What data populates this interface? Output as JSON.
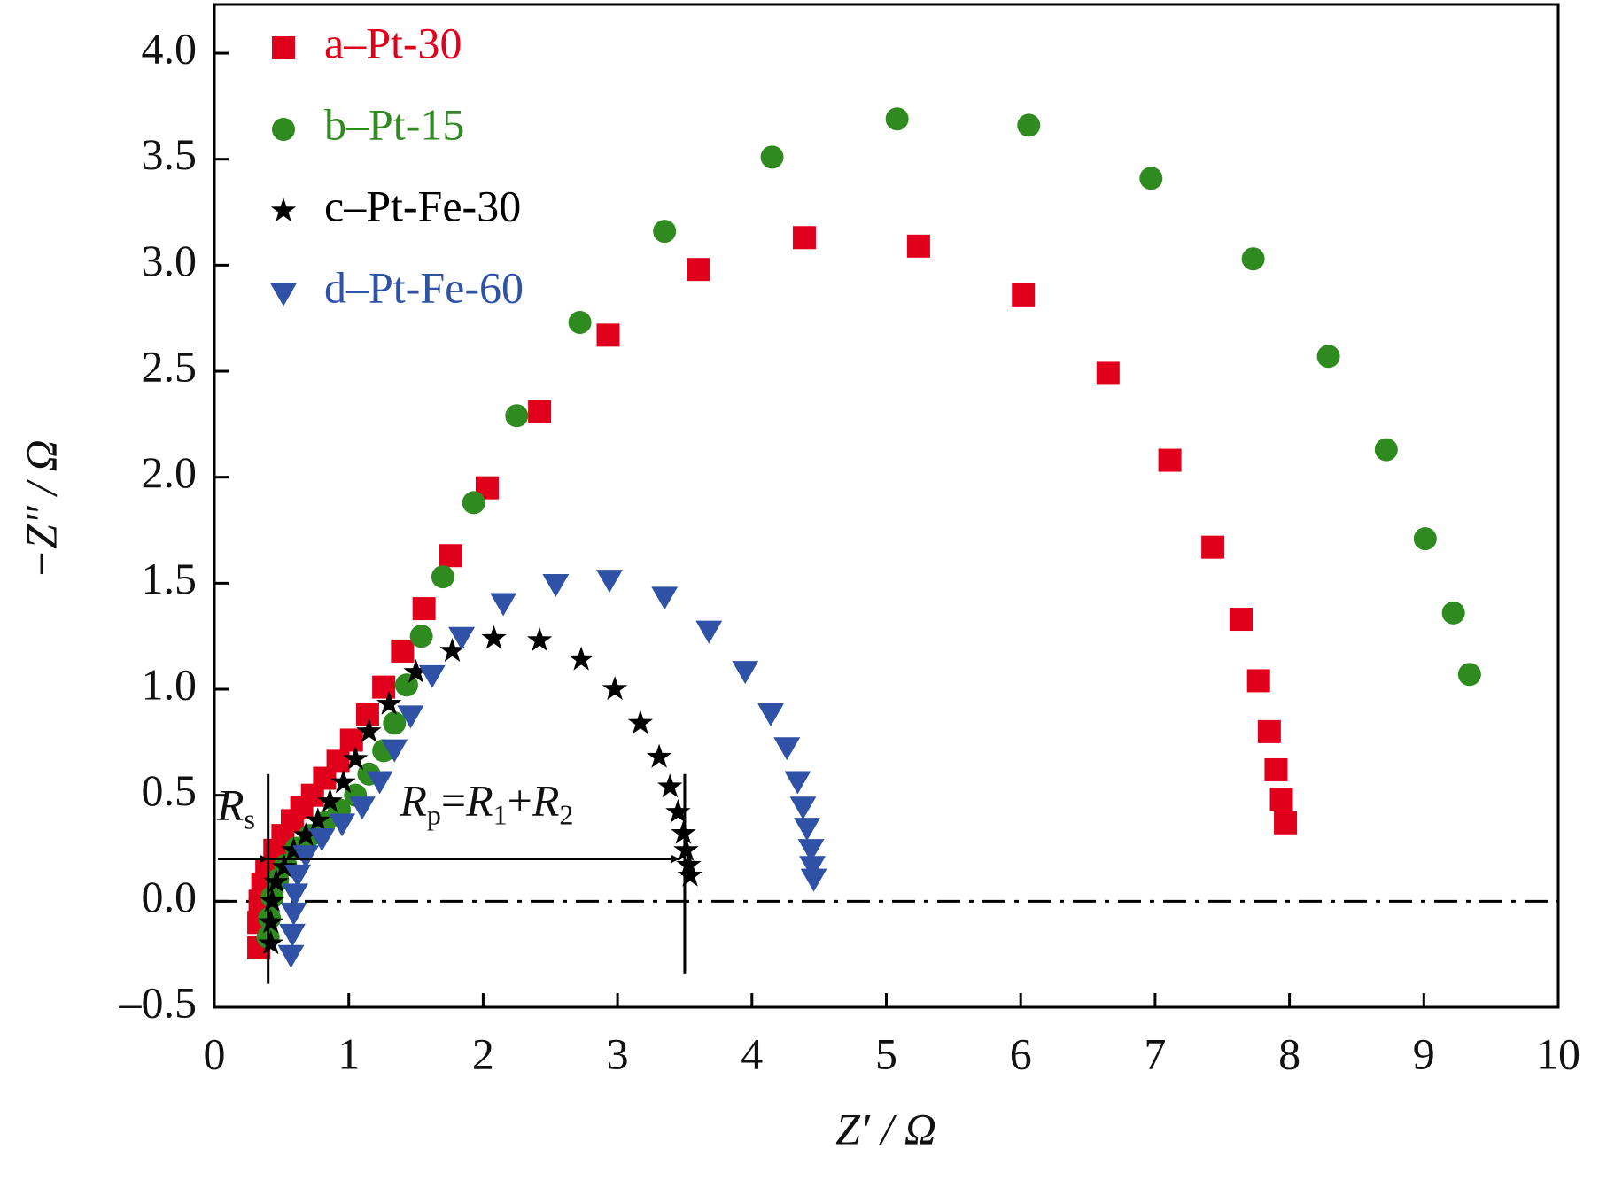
{
  "chart_data": {
    "type": "scatter",
    "x_label": "Z′ / Ω",
    "y_label": "−Z″ / Ω",
    "xlim": [
      0,
      10
    ],
    "ylim": [
      -0.5,
      4.23
    ],
    "xticks": [
      0,
      1,
      2,
      3,
      4,
      5,
      6,
      7,
      8,
      9,
      10
    ],
    "yticks": [
      {
        "value": -0.5,
        "label": "–0.5"
      },
      {
        "value": 0,
        "label": "0.0"
      },
      0.5,
      {
        "value": 1,
        "label": "1.0"
      },
      1.5,
      {
        "value": 2,
        "label": "2.0"
      },
      2.5,
      {
        "value": 3,
        "label": "3.0"
      },
      3.5,
      {
        "value": 4,
        "label": "4.0"
      }
    ],
    "legend": "upper left",
    "zero_line": 0,
    "annotations": [
      {
        "parts": [
          "R",
          "s"
        ],
        "x": 0.4
      },
      {
        "parts": [
          "R",
          "p",
          "=",
          "R",
          "1",
          "+",
          "R",
          "2"
        ],
        "x": 3.5
      }
    ],
    "arrow_y": 0.2,
    "series": [
      {
        "name": "a–Pt-30",
        "color": "#e0001b",
        "marker": "square",
        "x": [
          7.97,
          7.94,
          7.9,
          7.85,
          7.77,
          7.64,
          7.43,
          7.11,
          6.65,
          6.02,
          5.24,
          4.39,
          3.6,
          2.93,
          2.42,
          2.03,
          1.76,
          1.56,
          1.4,
          1.26,
          1.14,
          1.02,
          0.92,
          0.82,
          0.73,
          0.65,
          0.58,
          0.51,
          0.45,
          0.39,
          0.36,
          0.34,
          0.33,
          0.33
        ],
        "values": [
          0.37,
          0.48,
          0.62,
          0.8,
          1.04,
          1.33,
          1.67,
          2.08,
          2.49,
          2.86,
          3.09,
          3.13,
          2.98,
          2.67,
          2.31,
          1.95,
          1.63,
          1.38,
          1.18,
          1.01,
          0.88,
          0.76,
          0.66,
          0.58,
          0.5,
          0.44,
          0.38,
          0.31,
          0.24,
          0.15,
          0.08,
          0.0,
          -0.1,
          -0.22
        ]
      },
      {
        "name": "b–Pt-15",
        "color": "#2f8a1f",
        "marker": "circle",
        "x": [
          9.34,
          9.22,
          9.01,
          8.72,
          8.29,
          7.73,
          6.97,
          6.06,
          5.08,
          4.15,
          3.35,
          2.72,
          2.25,
          1.93,
          1.7,
          1.54,
          1.43,
          1.34,
          1.26,
          1.15,
          1.05,
          0.93,
          0.82,
          0.71,
          0.61,
          0.53,
          0.47,
          0.43,
          0.41,
          0.4
        ],
        "values": [
          1.07,
          1.36,
          1.71,
          2.13,
          2.57,
          3.03,
          3.41,
          3.66,
          3.69,
          3.51,
          3.16,
          2.73,
          2.29,
          1.88,
          1.53,
          1.25,
          1.02,
          0.84,
          0.71,
          0.6,
          0.5,
          0.43,
          0.37,
          0.31,
          0.25,
          0.17,
          0.1,
          0.02,
          -0.08,
          -0.17
        ]
      },
      {
        "name": "c–Pt-Fe-30",
        "color": "#000000",
        "marker": "star",
        "x": [
          3.54,
          3.53,
          3.51,
          3.49,
          3.45,
          3.39,
          3.31,
          3.17,
          2.98,
          2.73,
          2.42,
          2.08,
          1.77,
          1.5,
          1.3,
          1.15,
          1.05,
          0.96,
          0.86,
          0.77,
          0.68,
          0.59,
          0.52,
          0.46,
          0.43,
          0.42,
          0.42
        ],
        "values": [
          0.12,
          0.17,
          0.24,
          0.32,
          0.42,
          0.54,
          0.68,
          0.84,
          1.0,
          1.14,
          1.23,
          1.24,
          1.18,
          1.08,
          0.93,
          0.8,
          0.67,
          0.56,
          0.47,
          0.38,
          0.31,
          0.24,
          0.16,
          0.09,
          0.0,
          -0.1,
          -0.2
        ]
      },
      {
        "name": "d–Pt-Fe-60",
        "color": "#2f52a6",
        "marker": "triangle-down",
        "x": [
          4.46,
          4.45,
          4.44,
          4.41,
          4.38,
          4.34,
          4.26,
          4.14,
          3.95,
          3.68,
          3.35,
          2.94,
          2.54,
          2.15,
          1.84,
          1.62,
          1.46,
          1.34,
          1.23,
          1.1,
          0.95,
          0.8,
          0.68,
          0.62,
          0.6,
          0.59,
          0.58,
          0.57
        ],
        "values": [
          0.11,
          0.17,
          0.25,
          0.35,
          0.45,
          0.57,
          0.73,
          0.89,
          1.09,
          1.28,
          1.44,
          1.52,
          1.5,
          1.41,
          1.25,
          1.07,
          0.88,
          0.72,
          0.57,
          0.45,
          0.37,
          0.3,
          0.22,
          0.13,
          0.04,
          -0.05,
          -0.15,
          -0.25
        ]
      }
    ]
  }
}
